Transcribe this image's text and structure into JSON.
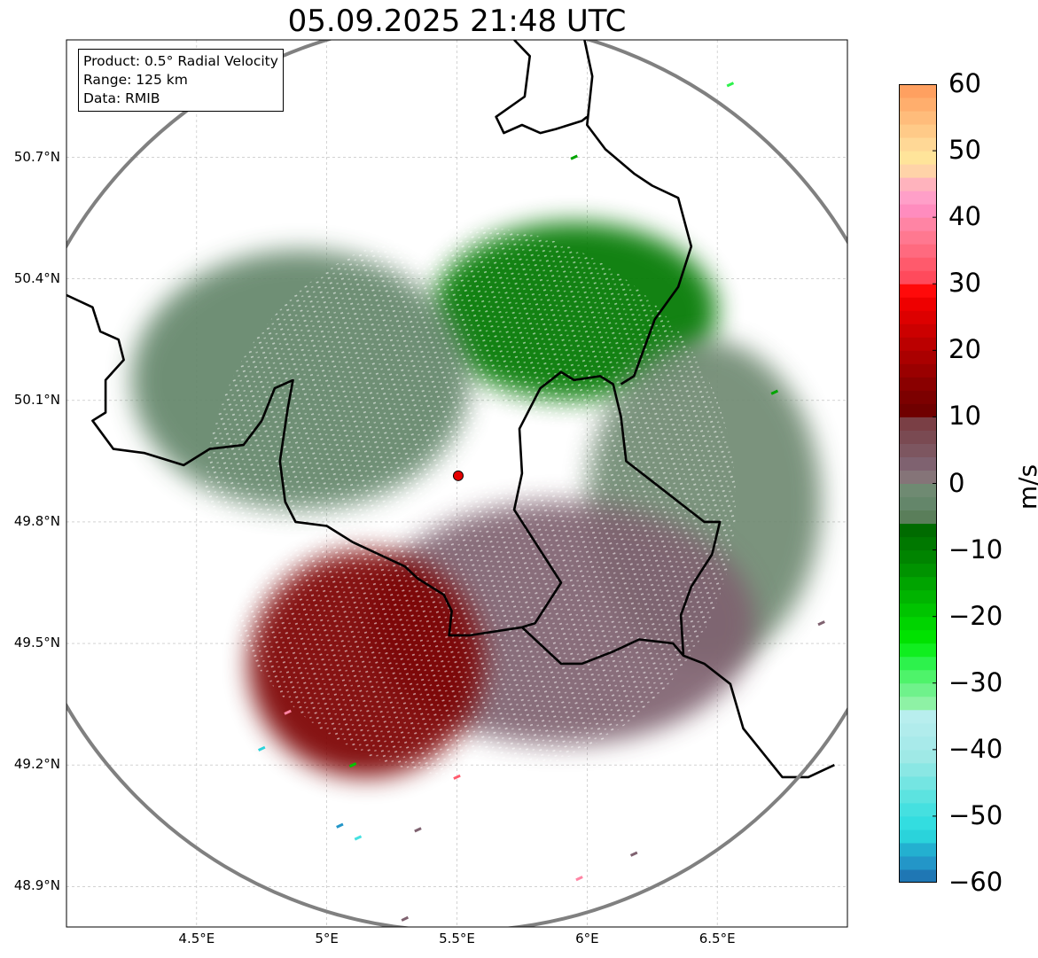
{
  "title": "05.09.2025 21:48 UTC",
  "info": {
    "line1": "Product: 0.5° Radial Velocity",
    "line2": "Range: 125 km",
    "line3": "Data: RMIB"
  },
  "axes": {
    "lat_ticks": [
      {
        "value": 50.7,
        "label": "50.7°N"
      },
      {
        "value": 50.4,
        "label": "50.4°N"
      },
      {
        "value": 50.1,
        "label": "50.1°N"
      },
      {
        "value": 49.8,
        "label": "49.8°N"
      },
      {
        "value": 49.5,
        "label": "49.5°N"
      },
      {
        "value": 49.2,
        "label": "49.2°N"
      },
      {
        "value": 48.9,
        "label": "48.9°N"
      }
    ],
    "lon_ticks": [
      {
        "value": 4.5,
        "label": "4.5°E"
      },
      {
        "value": 5.0,
        "label": "5°E"
      },
      {
        "value": 5.5,
        "label": "5.5°E"
      },
      {
        "value": 6.0,
        "label": "6°E"
      },
      {
        "value": 6.5,
        "label": "6.5°E"
      }
    ],
    "lon_range": [
      4.0,
      7.0
    ],
    "lat_range": [
      48.8,
      50.99
    ]
  },
  "radar": {
    "site_lon": 5.505,
    "site_lat": 49.914,
    "range_km": 125,
    "range_circle_color": "#808080",
    "site_marker_color": "#e60000"
  },
  "colorbar": {
    "unit": "m/s",
    "min": -60,
    "max": 60,
    "ticks": [
      {
        "value": 60,
        "label": "60"
      },
      {
        "value": 50,
        "label": "50"
      },
      {
        "value": 40,
        "label": "40"
      },
      {
        "value": 30,
        "label": "30"
      },
      {
        "value": 20,
        "label": "20"
      },
      {
        "value": 10,
        "label": "10"
      },
      {
        "value": 0,
        "label": "0"
      },
      {
        "value": -10,
        "label": "−10"
      },
      {
        "value": -20,
        "label": "−20"
      },
      {
        "value": -30,
        "label": "−30"
      },
      {
        "value": -40,
        "label": "−40"
      },
      {
        "value": -50,
        "label": "−50"
      },
      {
        "value": -60,
        "label": "−60"
      }
    ],
    "bands": [
      {
        "from": -60,
        "to": -58,
        "color": "#1f77b4"
      },
      {
        "from": -58,
        "to": -56,
        "color": "#2396c8"
      },
      {
        "from": -56,
        "to": -54,
        "color": "#23b0d0"
      },
      {
        "from": -54,
        "to": -52,
        "color": "#2ad3db"
      },
      {
        "from": -52,
        "to": -50,
        "color": "#33dde0"
      },
      {
        "from": -50,
        "to": -48,
        "color": "#45e0e0"
      },
      {
        "from": -48,
        "to": -46,
        "color": "#5ce3e0"
      },
      {
        "from": -46,
        "to": -44,
        "color": "#74e5e2"
      },
      {
        "from": -44,
        "to": -42,
        "color": "#8ae7e4"
      },
      {
        "from": -42,
        "to": -40,
        "color": "#9fe9e6"
      },
      {
        "from": -40,
        "to": -38,
        "color": "#a8eaea"
      },
      {
        "from": -38,
        "to": -36,
        "color": "#b1ecec"
      },
      {
        "from": -36,
        "to": -34,
        "color": "#b8eeee"
      },
      {
        "from": -34,
        "to": -32,
        "color": "#8ef2a5"
      },
      {
        "from": -32,
        "to": -30,
        "color": "#6ff28b"
      },
      {
        "from": -30,
        "to": -28,
        "color": "#4ef36a"
      },
      {
        "from": -28,
        "to": -26,
        "color": "#2df24c"
      },
      {
        "from": -26,
        "to": -24,
        "color": "#10ee1f"
      },
      {
        "from": -24,
        "to": -22,
        "color": "#00e200"
      },
      {
        "from": -22,
        "to": -20,
        "color": "#00d400"
      },
      {
        "from": -20,
        "to": -18,
        "color": "#00c400"
      },
      {
        "from": -18,
        "to": -16,
        "color": "#00b400"
      },
      {
        "from": -16,
        "to": -14,
        "color": "#00a400"
      },
      {
        "from": -14,
        "to": -12,
        "color": "#009300"
      },
      {
        "from": -12,
        "to": -10,
        "color": "#008400"
      },
      {
        "from": -10,
        "to": -8,
        "color": "#007800"
      },
      {
        "from": -8,
        "to": -6,
        "color": "#006b00"
      },
      {
        "from": -6,
        "to": -4,
        "color": "#5a7e5a"
      },
      {
        "from": -4,
        "to": -2,
        "color": "#64866a"
      },
      {
        "from": -2,
        "to": 0,
        "color": "#6f8a72"
      },
      {
        "from": 0,
        "to": 2,
        "color": "#857478"
      },
      {
        "from": 2,
        "to": 4,
        "color": "#7f6270"
      },
      {
        "from": 4,
        "to": 6,
        "color": "#7d5660"
      },
      {
        "from": 6,
        "to": 8,
        "color": "#7a4a52"
      },
      {
        "from": 8,
        "to": 10,
        "color": "#7a3f45"
      },
      {
        "from": 10,
        "to": 12,
        "color": "#700000"
      },
      {
        "from": 12,
        "to": 14,
        "color": "#7c0000"
      },
      {
        "from": 14,
        "to": 16,
        "color": "#8a0000"
      },
      {
        "from": 16,
        "to": 18,
        "color": "#9a0000"
      },
      {
        "from": 18,
        "to": 20,
        "color": "#aa0000"
      },
      {
        "from": 20,
        "to": 22,
        "color": "#bb0000"
      },
      {
        "from": 22,
        "to": 24,
        "color": "#cc0000"
      },
      {
        "from": 24,
        "to": 26,
        "color": "#dd0000"
      },
      {
        "from": 26,
        "to": 28,
        "color": "#ee0000"
      },
      {
        "from": 28,
        "to": 30,
        "color": "#ff0a0a"
      },
      {
        "from": 30,
        "to": 32,
        "color": "#ff4a5c"
      },
      {
        "from": 32,
        "to": 34,
        "color": "#ff5a6c"
      },
      {
        "from": 34,
        "to": 36,
        "color": "#ff6a7f"
      },
      {
        "from": 36,
        "to": 38,
        "color": "#ff7890"
      },
      {
        "from": 38,
        "to": 40,
        "color": "#ff84a4"
      },
      {
        "from": 40,
        "to": 42,
        "color": "#ff8cbe"
      },
      {
        "from": 42,
        "to": 44,
        "color": "#ff9fc8"
      },
      {
        "from": 44,
        "to": 46,
        "color": "#ffb3bd"
      },
      {
        "from": 46,
        "to": 48,
        "color": "#ffd3a8"
      },
      {
        "from": 48,
        "to": 50,
        "color": "#ffe49a"
      },
      {
        "from": 50,
        "to": 52,
        "color": "#ffd896"
      },
      {
        "from": 52,
        "to": 54,
        "color": "#ffca88"
      },
      {
        "from": 54,
        "to": 56,
        "color": "#ffbc7b"
      },
      {
        "from": 56,
        "to": 58,
        "color": "#ffae6d"
      },
      {
        "from": 58,
        "to": 60,
        "color": "#ffa060"
      }
    ]
  },
  "velocity_regions": [
    {
      "name": "inbound-green-north",
      "lon": 5.95,
      "lat": 50.32,
      "rx_deg": 0.55,
      "ry_deg": 0.22,
      "color": "#007800"
    },
    {
      "name": "near-zero-northwest",
      "lon": 4.9,
      "lat": 50.15,
      "rx_deg": 0.65,
      "ry_deg": 0.32,
      "color": "#64866a"
    },
    {
      "name": "near-zero-east",
      "lon": 6.45,
      "lat": 49.85,
      "rx_deg": 0.45,
      "ry_deg": 0.4,
      "color": "#6f8a72"
    },
    {
      "name": "near-zero-south-mauve",
      "lon": 5.9,
      "lat": 49.55,
      "rx_deg": 0.75,
      "ry_deg": 0.3,
      "color": "#7f6270"
    },
    {
      "name": "outbound-red-southwest",
      "lon": 5.15,
      "lat": 49.45,
      "rx_deg": 0.45,
      "ry_deg": 0.28,
      "color": "#7c0000"
    }
  ],
  "borders": [
    [
      [
        4.0,
        50.36
      ],
      [
        4.1,
        50.33
      ],
      [
        4.13,
        50.27
      ],
      [
        4.2,
        50.25
      ],
      [
        4.22,
        50.2
      ],
      [
        4.15,
        50.15
      ],
      [
        4.15,
        50.07
      ],
      [
        4.1,
        50.05
      ],
      [
        4.18,
        49.98
      ],
      [
        4.3,
        49.97
      ],
      [
        4.45,
        49.94
      ],
      [
        4.55,
        49.98
      ],
      [
        4.68,
        49.99
      ],
      [
        4.75,
        50.05
      ],
      [
        4.8,
        50.13
      ],
      [
        4.87,
        50.15
      ],
      [
        4.85,
        50.08
      ],
      [
        4.82,
        49.95
      ],
      [
        4.84,
        49.85
      ],
      [
        4.88,
        49.8
      ],
      [
        5.0,
        49.79
      ],
      [
        5.1,
        49.75
      ],
      [
        5.2,
        49.72
      ],
      [
        5.3,
        49.69
      ],
      [
        5.35,
        49.66
      ],
      [
        5.45,
        49.62
      ],
      [
        5.48,
        49.58
      ],
      [
        5.47,
        49.52
      ],
      [
        5.55,
        49.52
      ],
      [
        5.75,
        49.54
      ],
      [
        5.9,
        49.45
      ],
      [
        5.98,
        49.45
      ],
      [
        6.1,
        49.48
      ],
      [
        6.2,
        49.51
      ],
      [
        6.33,
        49.5
      ],
      [
        6.37,
        49.47
      ],
      [
        6.45,
        49.45
      ],
      [
        6.55,
        49.4
      ],
      [
        6.6,
        49.29
      ],
      [
        6.65,
        49.25
      ],
      [
        6.75,
        49.17
      ],
      [
        6.85,
        49.17
      ],
      [
        6.95,
        49.2
      ]
    ],
    [
      [
        5.75,
        49.54
      ],
      [
        5.8,
        49.55
      ],
      [
        5.9,
        49.65
      ],
      [
        5.82,
        49.73
      ],
      [
        5.72,
        49.83
      ],
      [
        5.75,
        49.92
      ],
      [
        5.74,
        50.03
      ],
      [
        5.82,
        50.13
      ],
      [
        5.9,
        50.17
      ],
      [
        5.95,
        50.15
      ],
      [
        6.05,
        50.16
      ],
      [
        6.1,
        50.14
      ],
      [
        6.13,
        50.06
      ],
      [
        6.15,
        49.95
      ],
      [
        6.25,
        49.9
      ],
      [
        6.45,
        49.8
      ],
      [
        6.51,
        49.8
      ],
      [
        6.48,
        49.72
      ],
      [
        6.4,
        49.64
      ],
      [
        6.36,
        49.57
      ],
      [
        6.37,
        49.47
      ]
    ],
    [
      [
        6.13,
        50.14
      ],
      [
        6.18,
        50.16
      ],
      [
        6.26,
        50.3
      ],
      [
        6.35,
        50.38
      ],
      [
        6.4,
        50.48
      ],
      [
        6.35,
        50.6
      ],
      [
        6.25,
        50.63
      ],
      [
        6.18,
        50.66
      ],
      [
        6.07,
        50.72
      ],
      [
        6.0,
        50.78
      ],
      [
        6.02,
        50.9
      ],
      [
        5.99,
        50.99
      ]
    ],
    [
      [
        5.72,
        50.99
      ],
      [
        5.78,
        50.95
      ],
      [
        5.76,
        50.85
      ],
      [
        5.65,
        50.8
      ],
      [
        5.68,
        50.76
      ],
      [
        5.75,
        50.78
      ],
      [
        5.82,
        50.76
      ],
      [
        5.88,
        50.77
      ],
      [
        5.98,
        50.79
      ],
      [
        6.0,
        50.8
      ]
    ]
  ],
  "noise_points": [
    {
      "lon": 4.75,
      "lat": 49.24,
      "color": "#2ad3db"
    },
    {
      "lon": 4.85,
      "lat": 49.33,
      "color": "#ff84a4"
    },
    {
      "lon": 5.05,
      "lat": 49.05,
      "color": "#2396c8"
    },
    {
      "lon": 5.12,
      "lat": 49.02,
      "color": "#45e0e0"
    },
    {
      "lon": 5.35,
      "lat": 49.04,
      "color": "#7f6270"
    },
    {
      "lon": 5.97,
      "lat": 48.92,
      "color": "#ff84a4"
    },
    {
      "lon": 6.18,
      "lat": 48.98,
      "color": "#7f6270"
    },
    {
      "lon": 6.55,
      "lat": 50.88,
      "color": "#2df24c"
    },
    {
      "lon": 5.95,
      "lat": 50.7,
      "color": "#00a400"
    },
    {
      "lon": 6.72,
      "lat": 50.12,
      "color": "#00a400"
    },
    {
      "lon": 6.9,
      "lat": 49.55,
      "color": "#7f6270"
    },
    {
      "lon": 5.3,
      "lat": 48.82,
      "color": "#7f6270"
    },
    {
      "lon": 5.5,
      "lat": 49.17,
      "color": "#ff5a6c"
    },
    {
      "lon": 5.1,
      "lat": 49.2,
      "color": "#00c400"
    }
  ]
}
